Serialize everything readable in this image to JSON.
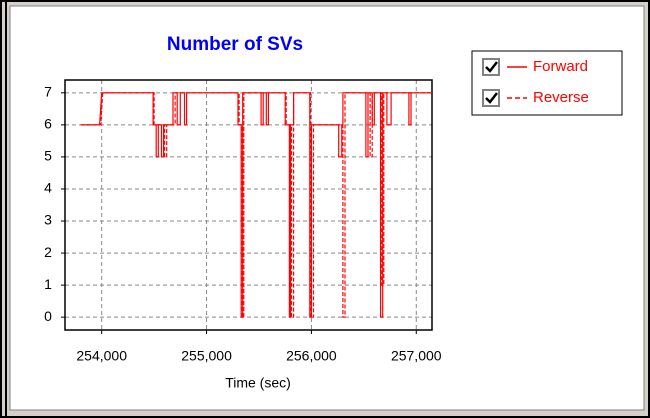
{
  "chart_data": {
    "type": "line",
    "title": "Number of SVs",
    "x_label": "Time (sec)",
    "xlim": [
      253650,
      257150
    ],
    "ylim": [
      -0.4,
      7.4
    ],
    "xticks": [
      {
        "value": 254000,
        "label": "254,000"
      },
      {
        "value": 255000,
        "label": "255,000"
      },
      {
        "value": 256000,
        "label": "256,000"
      },
      {
        "value": 257000,
        "label": "257,000"
      }
    ],
    "yticks": [
      0,
      1,
      2,
      3,
      4,
      5,
      6,
      7
    ],
    "grid": true,
    "legend_position": "right",
    "series": [
      {
        "name": "Forward",
        "color": "#ff0000",
        "line_style": "solid",
        "x": [
          253800,
          253980,
          254000,
          254490,
          254490,
          254520,
          254520,
          254540,
          254540,
          254570,
          254570,
          254590,
          254590,
          254680,
          254680,
          254720,
          254720,
          254750,
          254750,
          254790,
          254790,
          254810,
          254810,
          255300,
          255300,
          255330,
          255330,
          255345,
          255345,
          255520,
          255520,
          255540,
          255540,
          255570,
          255570,
          255590,
          255590,
          255750,
          255750,
          255790,
          255790,
          255800,
          255800,
          255830,
          255830,
          255985,
          255985,
          256000,
          256000,
          256260,
          256260,
          256290,
          256290,
          256300,
          256300,
          256520,
          256520,
          256540,
          256540,
          256580,
          256580,
          256600,
          256600,
          256660,
          256660,
          256680,
          256680,
          256720,
          256720,
          256760,
          256760,
          256930,
          256930,
          256950,
          256950,
          257150
        ],
        "values": [
          6,
          6,
          7,
          7,
          6,
          6,
          5,
          5,
          6,
          6,
          5,
          5,
          6,
          6,
          7,
          7,
          6,
          6,
          7,
          7,
          6,
          6,
          7,
          7,
          6,
          6,
          0,
          0,
          7,
          7,
          6,
          6,
          7,
          7,
          6,
          6,
          7,
          7,
          6,
          6,
          0,
          0,
          6,
          6,
          7,
          7,
          0,
          0,
          6,
          6,
          5,
          5,
          6,
          6,
          7,
          7,
          5,
          5,
          7,
          7,
          6,
          6,
          7,
          7,
          0,
          0,
          7,
          7,
          6,
          6,
          7,
          7,
          6,
          6,
          7,
          7
        ]
      },
      {
        "name": "Reverse",
        "color": "#ff0000",
        "line_style": "dashed",
        "x": [
          253800,
          253990,
          254010,
          254500,
          254500,
          254600,
          254600,
          254620,
          254620,
          254700,
          254700,
          255310,
          255310,
          255340,
          255340,
          255355,
          255355,
          255760,
          255760,
          255810,
          255810,
          255830,
          255830,
          255990,
          255990,
          256020,
          256020,
          256300,
          256300,
          256320,
          256320,
          256560,
          256560,
          256580,
          256580,
          256670,
          256670,
          256690,
          256690,
          257150
        ],
        "values": [
          6,
          6,
          7,
          7,
          6,
          6,
          5,
          5,
          6,
          6,
          7,
          7,
          6,
          6,
          0,
          0,
          7,
          7,
          6,
          6,
          0,
          0,
          7,
          7,
          0,
          0,
          6,
          6,
          0,
          0,
          7,
          7,
          5,
          5,
          7,
          7,
          1,
          1,
          7,
          7
        ]
      }
    ]
  }
}
